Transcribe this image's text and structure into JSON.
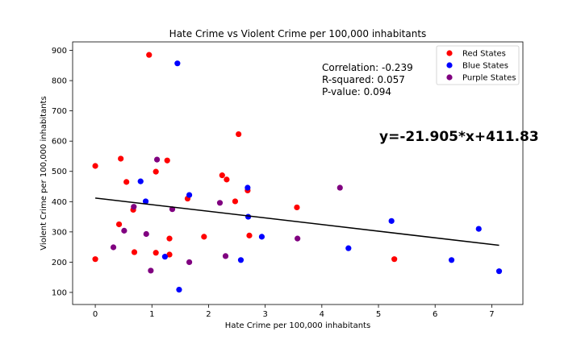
{
  "chart_data": {
    "type": "scatter",
    "title": "Hate Crime vs Violent Crime per 100,000 inhabitants",
    "xlabel": "Hate Crime per 100,000 inhabitants",
    "ylabel": "Violent Crime per 100,000 inhabitants",
    "xlim": [
      -0.4,
      7.55
    ],
    "ylim": [
      60,
      928
    ],
    "xticks": [
      0,
      1,
      2,
      3,
      4,
      5,
      6,
      7
    ],
    "yticks": [
      100,
      200,
      300,
      400,
      500,
      600,
      700,
      800,
      900
    ],
    "legend_position": "top-right",
    "series": [
      {
        "name": "Red States",
        "color": "#ff0000",
        "points": [
          [
            0.0,
            518
          ],
          [
            0.0,
            210
          ],
          [
            0.45,
            542
          ],
          [
            0.42,
            325
          ],
          [
            0.55,
            465
          ],
          [
            0.67,
            373
          ],
          [
            0.69,
            233
          ],
          [
            0.95,
            885
          ],
          [
            1.07,
            499
          ],
          [
            1.07,
            231
          ],
          [
            1.27,
            536
          ],
          [
            1.31,
            278
          ],
          [
            1.31,
            225
          ],
          [
            1.63,
            410
          ],
          [
            1.92,
            284
          ],
          [
            2.24,
            487
          ],
          [
            2.32,
            473
          ],
          [
            2.47,
            401
          ],
          [
            2.53,
            623
          ],
          [
            2.69,
            437
          ],
          [
            2.72,
            288
          ],
          [
            3.56,
            381
          ],
          [
            5.28,
            210
          ]
        ]
      },
      {
        "name": "Blue States",
        "color": "#0000ff",
        "points": [
          [
            0.8,
            467
          ],
          [
            0.89,
            401
          ],
          [
            1.23,
            218
          ],
          [
            1.45,
            857
          ],
          [
            1.48,
            109
          ],
          [
            1.66,
            422
          ],
          [
            2.57,
            207
          ],
          [
            2.69,
            446
          ],
          [
            2.7,
            350
          ],
          [
            2.94,
            284
          ],
          [
            4.47,
            246
          ],
          [
            5.23,
            336
          ],
          [
            6.29,
            207
          ],
          [
            6.77,
            310
          ],
          [
            7.13,
            170
          ]
        ]
      },
      {
        "name": "Purple States",
        "color": "#800080",
        "points": [
          [
            0.32,
            249
          ],
          [
            0.51,
            304
          ],
          [
            0.68,
            383
          ],
          [
            0.9,
            293
          ],
          [
            0.98,
            172
          ],
          [
            1.09,
            539
          ],
          [
            1.36,
            375
          ],
          [
            1.66,
            200
          ],
          [
            2.2,
            396
          ],
          [
            2.3,
            220
          ],
          [
            3.57,
            278
          ],
          [
            4.32,
            446
          ]
        ]
      }
    ],
    "regression_line": {
      "x": [
        0.0,
        7.13
      ],
      "y": [
        411.83,
        255.64
      ],
      "color": "#000000"
    },
    "annotations": {
      "correlation": "Correlation: -0.239",
      "r_squared": "R-squared: 0.057",
      "p_value": "P-value: 0.094",
      "equation": "y=-21.905*x+411.83"
    }
  }
}
